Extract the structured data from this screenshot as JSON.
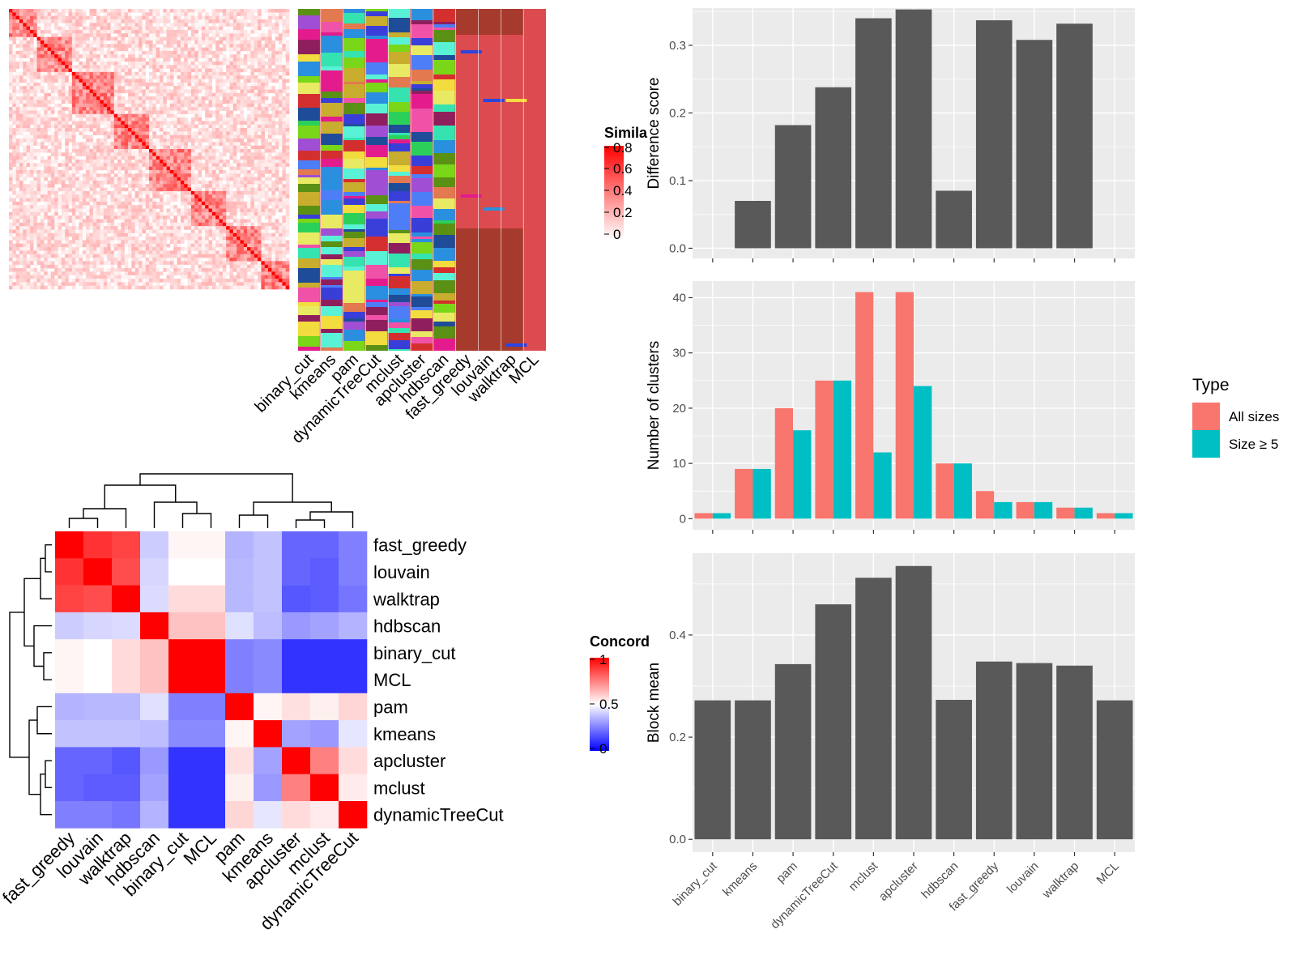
{
  "colors": {
    "panel_bg": "#ebebeb",
    "grid": "#ffffff",
    "bar": "#595959",
    "all_sizes": "#f8766d",
    "size_ge5": "#00bfc4",
    "heat_red": "#ff0000",
    "heat_white": "#ffffff",
    "heat_blue": "#0000ff"
  },
  "similarity_heatmap": {
    "legend_title": "Simila",
    "legend_ticks": [
      "0.8",
      "0.6",
      "0.4",
      "0.2",
      "0"
    ],
    "method_columns": [
      "binary_cut",
      "kmeans",
      "pam",
      "dynamicTreeCut",
      "mclust",
      "apcluster",
      "hdbscan",
      "fast_greedy",
      "louvain",
      "walktrap",
      "MCL"
    ]
  },
  "concordance_heatmap": {
    "legend_title": "Concord",
    "legend_ticks": [
      "1",
      "0.5",
      "0"
    ],
    "rows": [
      "fast_greedy",
      "louvain",
      "walktrap",
      "hdbscan",
      "binary_cut",
      "MCL",
      "pam",
      "kmeans",
      "apcluster",
      "mclust",
      "dynamicTreeCut"
    ],
    "columns": [
      "fast_greedy",
      "louvain",
      "walktrap",
      "hdbscan",
      "binary_cut",
      "MCL",
      "pam",
      "kmeans",
      "apcluster",
      "mclust",
      "dynamicTreeCut"
    ],
    "values": [
      [
        1.0,
        0.9,
        0.87,
        0.4,
        0.52,
        0.52,
        0.35,
        0.38,
        0.2,
        0.2,
        0.25
      ],
      [
        0.9,
        1.0,
        0.85,
        0.42,
        0.5,
        0.5,
        0.36,
        0.38,
        0.2,
        0.18,
        0.25
      ],
      [
        0.87,
        0.85,
        1.0,
        0.43,
        0.57,
        0.57,
        0.36,
        0.38,
        0.17,
        0.18,
        0.23
      ],
      [
        0.4,
        0.42,
        0.43,
        1.0,
        0.62,
        0.62,
        0.44,
        0.37,
        0.3,
        0.32,
        0.35
      ],
      [
        0.52,
        0.5,
        0.57,
        0.62,
        1.0,
        1.0,
        0.25,
        0.27,
        0.1,
        0.1,
        0.1
      ],
      [
        0.52,
        0.5,
        0.57,
        0.62,
        1.0,
        1.0,
        0.25,
        0.27,
        0.1,
        0.1,
        0.1
      ],
      [
        0.35,
        0.36,
        0.36,
        0.44,
        0.25,
        0.25,
        1.0,
        0.52,
        0.56,
        0.53,
        0.58
      ],
      [
        0.38,
        0.38,
        0.38,
        0.37,
        0.27,
        0.27,
        0.52,
        1.0,
        0.32,
        0.3,
        0.45
      ],
      [
        0.2,
        0.2,
        0.17,
        0.3,
        0.1,
        0.1,
        0.56,
        0.32,
        1.0,
        0.75,
        0.57
      ],
      [
        0.2,
        0.18,
        0.18,
        0.32,
        0.1,
        0.1,
        0.53,
        0.3,
        0.75,
        1.0,
        0.54
      ],
      [
        0.25,
        0.25,
        0.23,
        0.35,
        0.1,
        0.1,
        0.58,
        0.45,
        0.57,
        0.54,
        1.0
      ]
    ]
  },
  "chart_data": [
    {
      "type": "bar",
      "categories": [
        "binary_cut",
        "kmeans",
        "pam",
        "dynamicTreeCut",
        "mclust",
        "apcluster",
        "hdbscan",
        "fast_greedy",
        "louvain",
        "walktrap",
        "MCL"
      ],
      "values": [
        0,
        0.07,
        0.182,
        0.238,
        0.34,
        0.353,
        0.085,
        0.337,
        0.308,
        0.332,
        0
      ],
      "ylabel": "Difference score",
      "ylim": [
        -0.015,
        0.355
      ],
      "yticks": [
        "0.0",
        "0.1",
        "0.2",
        "0.3"
      ],
      "grid": true
    },
    {
      "type": "bar",
      "categories": [
        "binary_cut",
        "kmeans",
        "pam",
        "dynamicTreeCut",
        "mclust",
        "apcluster",
        "hdbscan",
        "fast_greedy",
        "louvain",
        "walktrap",
        "MCL"
      ],
      "series": [
        {
          "name": "All sizes",
          "values": [
            1,
            9,
            20,
            25,
            41,
            41,
            10,
            5,
            3,
            2,
            1
          ]
        },
        {
          "name": "Size ≥ 5",
          "values": [
            1,
            9,
            16,
            25,
            12,
            24,
            10,
            3,
            3,
            2,
            1
          ]
        }
      ],
      "ylabel": "Number of clusters",
      "ylim": [
        -2,
        43
      ],
      "yticks": [
        "0",
        "10",
        "20",
        "30",
        "40"
      ],
      "legend_title": "Type",
      "legend_position": "right",
      "grid": true
    },
    {
      "type": "bar",
      "categories": [
        "binary_cut",
        "kmeans",
        "pam",
        "dynamicTreeCut",
        "mclust",
        "apcluster",
        "hdbscan",
        "fast_greedy",
        "louvain",
        "walktrap",
        "MCL"
      ],
      "values": [
        0.272,
        0.272,
        0.343,
        0.46,
        0.512,
        0.535,
        0.273,
        0.348,
        0.345,
        0.34,
        0.272
      ],
      "ylabel": "Block mean",
      "ylim": [
        -0.025,
        0.56
      ],
      "yticks": [
        "0.0",
        "0.2",
        "0.4"
      ],
      "grid": true
    }
  ]
}
